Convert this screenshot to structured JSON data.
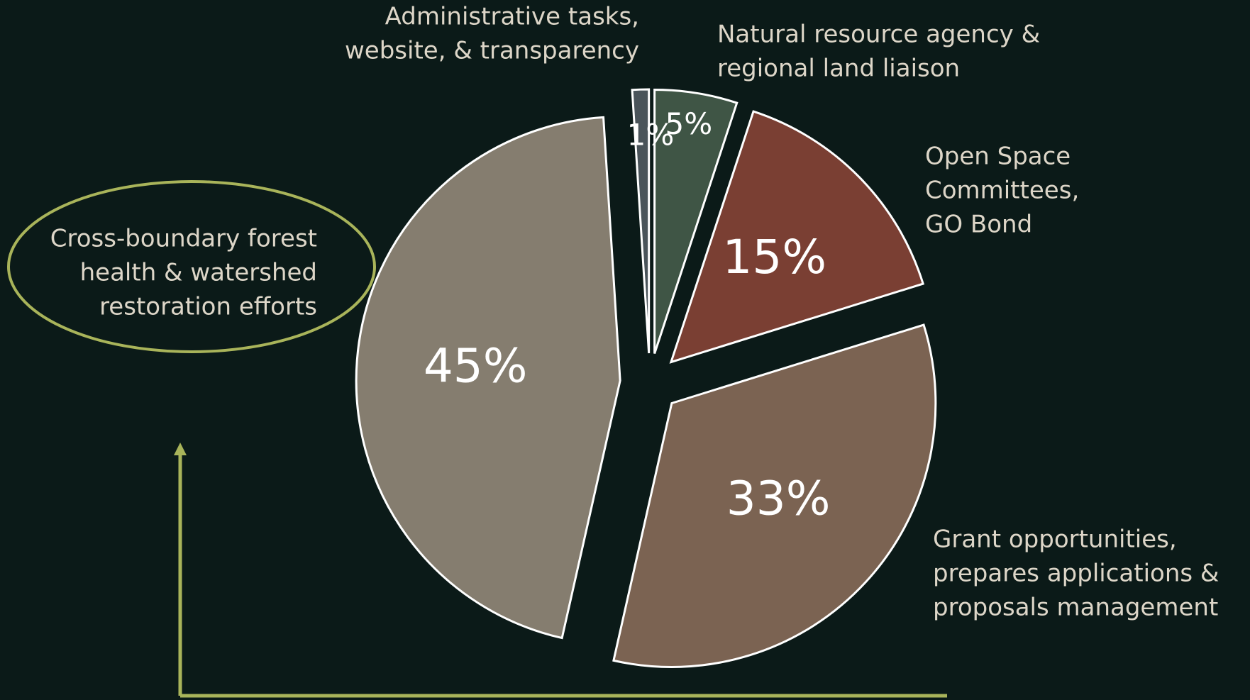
{
  "chart_data": {
    "type": "pie",
    "categories": [
      [
        "Administrative tasks,",
        "website, & transparency"
      ],
      [
        "Natural resource agency &",
        "regional land liaison"
      ],
      [
        "Open Space",
        "Committees,",
        "GO Bond"
      ],
      [
        "Grant opportunities,",
        "prepares applications &",
        "proposals management"
      ],
      [
        "Cross-boundary forest",
        "health & watershed",
        "restoration efforts"
      ]
    ],
    "values": [
      1,
      5,
      15,
      33,
      45
    ],
    "value_labels": [
      "1%",
      "5%",
      "15%",
      "33%",
      "45%"
    ],
    "colors": [
      "#4a545a",
      "#3f5545",
      "#7a3f33",
      "#7b6352",
      "#857d6f"
    ]
  }
}
